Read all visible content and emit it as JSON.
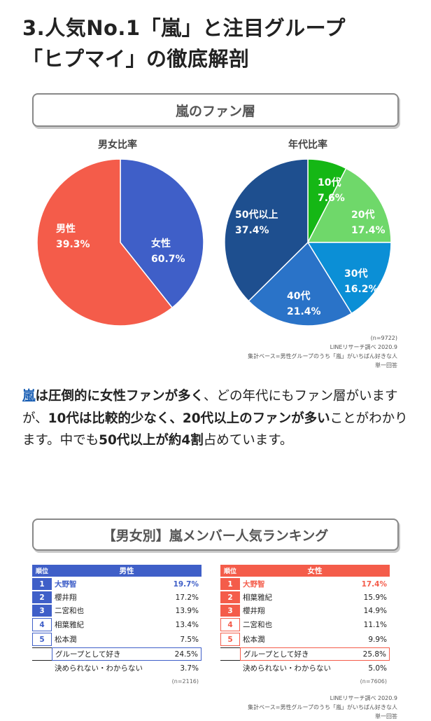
{
  "title": {
    "line1": "3.人気No.1「嵐」と注目グループ",
    "line2": "「ヒプマイ」の徹底解剖"
  },
  "fan_section": {
    "header": "嵐のファン層",
    "gender_title": "男女比率",
    "age_title": "年代比率",
    "gender": [
      {
        "label": "男性",
        "pct": "39.3%",
        "value": 39.3,
        "color": "#3f5fc8"
      },
      {
        "label": "女性",
        "pct": "60.7%",
        "value": 60.7,
        "color": "#f45c4a"
      }
    ],
    "age": [
      {
        "label": "10代",
        "pct": "7.6%",
        "value": 7.6,
        "color": "#15b715"
      },
      {
        "label": "20代",
        "pct": "17.4%",
        "value": 17.4,
        "color": "#6fd86a"
      },
      {
        "label": "30代",
        "pct": "16.2%",
        "value": 16.2,
        "color": "#0b8fd6"
      },
      {
        "label": "40代",
        "pct": "21.4%",
        "value": 21.4,
        "color": "#2a73c8"
      },
      {
        "label": "50代以上",
        "pct": "37.4%",
        "value": 37.4,
        "color": "#1e4f8f"
      }
    ],
    "n_note": "(n=9722)",
    "source": "LINEリサーチ調べ 2020.9",
    "base": "集計ベース=男性グループのうち「嵐」がいちばん好きな人",
    "answer": "単一回答"
  },
  "body_text": {
    "p1": "嵐",
    "p2": "は圧倒的に女性ファンが多く",
    "p3": "、どの年代にもファン層がいますが、",
    "p4": "10代は比較的少なく、20代以上のファンが多い",
    "p5": "ことがわかります。中でも",
    "p6": "50代以上が約4割",
    "p7": "占めています。"
  },
  "ranking": {
    "header": "【男女別】嵐メンバー人気ランキング",
    "rank_label": "順位",
    "male": {
      "title": "男性",
      "color": "#3f5fc8",
      "rows": [
        {
          "rank": "1",
          "name": "大野智",
          "pct": "19.7%"
        },
        {
          "rank": "2",
          "name": "櫻井翔",
          "pct": "17.2%"
        },
        {
          "rank": "3",
          "name": "二宮和也",
          "pct": "13.9%"
        },
        {
          "rank": "4",
          "name": "相葉雅紀",
          "pct": "13.4%"
        },
        {
          "rank": "5",
          "name": "松本潤",
          "pct": "7.5%"
        }
      ],
      "group": {
        "name": "グループとして好き",
        "pct": "24.5%"
      },
      "unknown": {
        "name": "決められない・わからない",
        "pct": "3.7%"
      },
      "n": "(n=2116)"
    },
    "female": {
      "title": "女性",
      "color": "#f45c4a",
      "rows": [
        {
          "rank": "1",
          "name": "大野智",
          "pct": "17.4%"
        },
        {
          "rank": "2",
          "name": "相葉雅紀",
          "pct": "15.9%"
        },
        {
          "rank": "3",
          "name": "櫻井翔",
          "pct": "14.9%"
        },
        {
          "rank": "4",
          "name": "二宮和也",
          "pct": "11.1%"
        },
        {
          "rank": "5",
          "name": "松本潤",
          "pct": "9.9%"
        }
      ],
      "group": {
        "name": "グループとして好き",
        "pct": "25.8%"
      },
      "unknown": {
        "name": "決められない・わからない",
        "pct": "5.0%"
      },
      "n": "(n=7606)"
    },
    "source": "LINEリサーチ調べ 2020.9",
    "base": "集計ベース=男性グループのうち「嵐」がいちばん好きな人",
    "answer": "単一回答"
  }
}
